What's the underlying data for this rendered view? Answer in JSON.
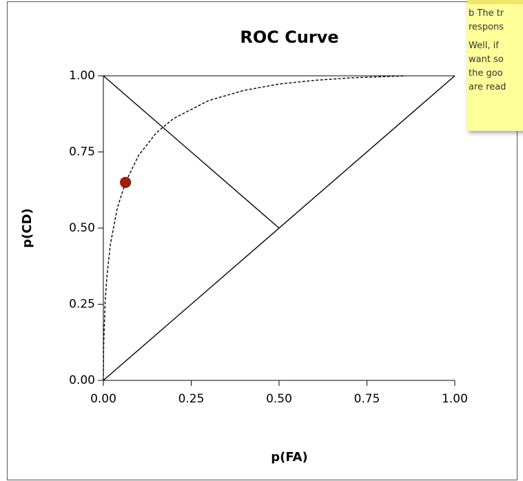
{
  "chart_data": {
    "type": "line",
    "title": "ROC Curve",
    "x_label": "p(FA)",
    "y_label": "p(CD)",
    "xlim": [
      0,
      1
    ],
    "ylim": [
      0,
      1
    ],
    "xticks": [
      {
        "value": 0,
        "label": "0.00"
      },
      {
        "value": 0.25,
        "label": "0.25"
      },
      {
        "value": 0.5,
        "label": "0.50"
      },
      {
        "value": 0.75,
        "label": "0.75"
      },
      {
        "value": 1,
        "label": "1.00"
      }
    ],
    "yticks": [
      {
        "value": 0,
        "label": "0.00"
      },
      {
        "value": 0.25,
        "label": "0.25"
      },
      {
        "value": 0.5,
        "label": "0.50"
      },
      {
        "value": 0.75,
        "label": "0.75"
      },
      {
        "value": 1,
        "label": "1.00"
      }
    ],
    "series": [
      {
        "color": "#000000",
        "style": "solid",
        "x": [
          0,
          1
        ],
        "values": [
          0,
          1
        ]
      },
      {
        "color": "#000000",
        "style": "solid",
        "x": [
          0,
          0.5
        ],
        "values": [
          1,
          0.5
        ]
      },
      {
        "color": "#000000",
        "style": "dashed",
        "x": [
          0,
          0.001,
          0.005,
          0.01,
          0.02,
          0.04,
          0.063,
          0.1,
          0.15,
          0.2,
          0.3,
          0.4,
          0.5,
          0.6,
          0.7,
          0.86
        ],
        "values": [
          0,
          0.12,
          0.256,
          0.34,
          0.447,
          0.567,
          0.65,
          0.738,
          0.812,
          0.86,
          0.919,
          0.952,
          0.973,
          0.985,
          0.993,
          1
        ]
      },
      {
        "color": "#a31d0b",
        "style": "marker",
        "x": [
          0.063
        ],
        "values": [
          0.65
        ]
      }
    ]
  },
  "note": {
    "lines": [
      "b The tr",
      "respons",
      "Well, if",
      "want so",
      "the goo",
      "are read"
    ]
  }
}
